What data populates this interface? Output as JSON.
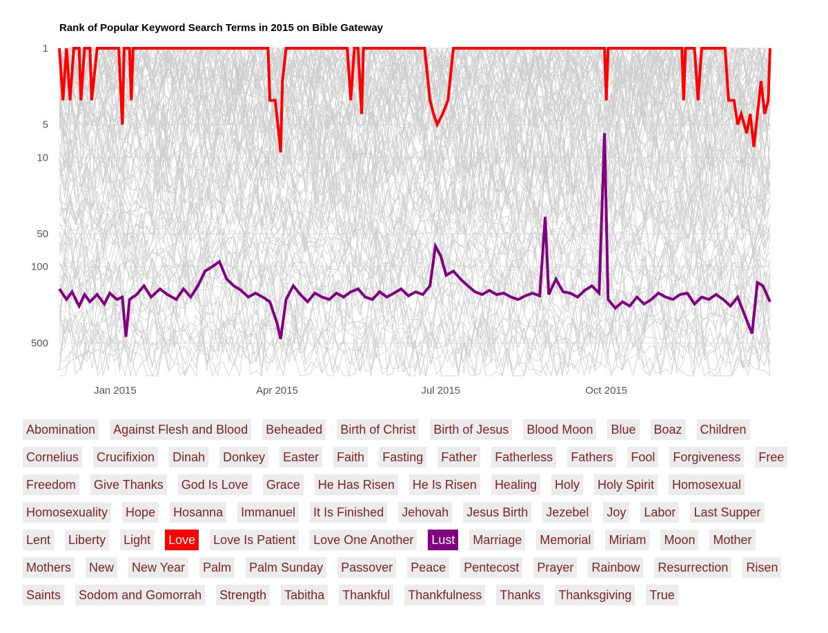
{
  "chart_data": {
    "type": "line",
    "title": "Rank of Popular Keyword Search Terms in 2015 on Bible Gateway",
    "xlabel": "",
    "ylabel": "",
    "x_range": [
      "2014-12-01",
      "2015-12-31"
    ],
    "y_scale": "log",
    "y_reversed": true,
    "ylim": [
      1,
      1000
    ],
    "y_ticks": [
      {
        "value": 1,
        "label": "1"
      },
      {
        "value": 5,
        "label": "5"
      },
      {
        "value": 10,
        "label": "10"
      },
      {
        "value": 50,
        "label": "50"
      },
      {
        "value": 100,
        "label": "100"
      },
      {
        "value": 500,
        "label": "500"
      }
    ],
    "x_ticks": [
      {
        "value": "2015-01-01",
        "label": "Jan 2015"
      },
      {
        "value": "2015-04-01",
        "label": "Apr 2015"
      },
      {
        "value": "2015-07-01",
        "label": "Jul 2015"
      },
      {
        "value": "2015-10-01",
        "label": "Oct 2015"
      }
    ],
    "grid": true,
    "legend": "none",
    "background_series_color": "#cccccc",
    "background_series_count": 100,
    "series": [
      {
        "name": "Love",
        "color": "#ff0000",
        "points": [
          [
            "2014-12-01",
            1
          ],
          [
            "2014-12-03",
            3
          ],
          [
            "2014-12-05",
            1
          ],
          [
            "2014-12-07",
            3
          ],
          [
            "2014-12-09",
            1
          ],
          [
            "2014-12-12",
            1
          ],
          [
            "2014-12-13",
            3
          ],
          [
            "2014-12-15",
            1
          ],
          [
            "2014-12-18",
            1
          ],
          [
            "2014-12-19",
            3
          ],
          [
            "2014-12-22",
            1
          ],
          [
            "2015-01-03",
            1
          ],
          [
            "2015-01-05",
            5
          ],
          [
            "2015-01-06",
            1
          ],
          [
            "2015-01-09",
            1
          ],
          [
            "2015-01-10",
            3
          ],
          [
            "2015-01-11",
            1
          ],
          [
            "2015-03-27",
            1
          ],
          [
            "2015-03-28",
            3
          ],
          [
            "2015-03-31",
            3
          ],
          [
            "2015-04-02",
            6
          ],
          [
            "2015-04-03",
            9
          ],
          [
            "2015-04-04",
            2
          ],
          [
            "2015-04-06",
            1
          ],
          [
            "2015-05-10",
            1
          ],
          [
            "2015-05-12",
            3
          ],
          [
            "2015-05-14",
            1
          ],
          [
            "2015-05-16",
            1
          ],
          [
            "2015-05-18",
            4
          ],
          [
            "2015-05-19",
            1
          ],
          [
            "2015-06-22",
            1
          ],
          [
            "2015-06-25",
            3
          ],
          [
            "2015-06-27",
            4
          ],
          [
            "2015-06-29",
            5
          ],
          [
            "2015-07-02",
            4
          ],
          [
            "2015-07-05",
            3
          ],
          [
            "2015-07-08",
            1
          ],
          [
            "2015-09-30",
            1
          ],
          [
            "2015-10-01",
            3
          ],
          [
            "2015-10-02",
            1
          ],
          [
            "2015-11-12",
            1
          ],
          [
            "2015-11-13",
            3
          ],
          [
            "2015-11-14",
            1
          ],
          [
            "2015-11-19",
            1
          ],
          [
            "2015-11-21",
            3
          ],
          [
            "2015-11-23",
            1
          ],
          [
            "2015-12-06",
            1
          ],
          [
            "2015-12-08",
            3
          ],
          [
            "2015-12-11",
            3
          ],
          [
            "2015-12-13",
            5
          ],
          [
            "2015-12-15",
            4
          ],
          [
            "2015-12-18",
            6
          ],
          [
            "2015-12-20",
            4
          ],
          [
            "2015-12-22",
            8
          ],
          [
            "2015-12-24",
            4
          ],
          [
            "2015-12-26",
            2
          ],
          [
            "2015-12-28",
            4
          ],
          [
            "2015-12-30",
            3
          ],
          [
            "2015-12-31",
            1
          ]
        ]
      },
      {
        "name": "Lust",
        "color": "#800080",
        "points": [
          [
            "2014-12-01",
            160
          ],
          [
            "2014-12-05",
            200
          ],
          [
            "2014-12-08",
            170
          ],
          [
            "2014-12-12",
            230
          ],
          [
            "2014-12-15",
            180
          ],
          [
            "2014-12-18",
            210
          ],
          [
            "2014-12-22",
            180
          ],
          [
            "2014-12-26",
            220
          ],
          [
            "2014-12-29",
            175
          ],
          [
            "2015-01-02",
            200
          ],
          [
            "2015-01-05",
            190
          ],
          [
            "2015-01-07",
            440
          ],
          [
            "2015-01-09",
            200
          ],
          [
            "2015-01-13",
            180
          ],
          [
            "2015-01-17",
            150
          ],
          [
            "2015-01-21",
            190
          ],
          [
            "2015-01-26",
            160
          ],
          [
            "2015-01-30",
            180
          ],
          [
            "2015-02-04",
            200
          ],
          [
            "2015-02-08",
            160
          ],
          [
            "2015-02-12",
            190
          ],
          [
            "2015-02-16",
            150
          ],
          [
            "2015-02-20",
            110
          ],
          [
            "2015-02-24",
            100
          ],
          [
            "2015-02-28",
            90
          ],
          [
            "2015-03-04",
            130
          ],
          [
            "2015-03-08",
            150
          ],
          [
            "2015-03-12",
            165
          ],
          [
            "2015-03-16",
            190
          ],
          [
            "2015-03-20",
            175
          ],
          [
            "2015-03-24",
            190
          ],
          [
            "2015-03-28",
            210
          ],
          [
            "2015-04-01",
            330
          ],
          [
            "2015-04-03",
            460
          ],
          [
            "2015-04-06",
            200
          ],
          [
            "2015-04-10",
            150
          ],
          [
            "2015-04-14",
            180
          ],
          [
            "2015-04-18",
            210
          ],
          [
            "2015-04-22",
            175
          ],
          [
            "2015-04-26",
            190
          ],
          [
            "2015-04-30",
            200
          ],
          [
            "2015-05-04",
            175
          ],
          [
            "2015-05-08",
            190
          ],
          [
            "2015-05-12",
            170
          ],
          [
            "2015-05-16",
            160
          ],
          [
            "2015-05-20",
            190
          ],
          [
            "2015-05-24",
            200
          ],
          [
            "2015-05-28",
            170
          ],
          [
            "2015-06-01",
            190
          ],
          [
            "2015-06-05",
            175
          ],
          [
            "2015-06-09",
            160
          ],
          [
            "2015-06-13",
            185
          ],
          [
            "2015-06-17",
            170
          ],
          [
            "2015-06-21",
            180
          ],
          [
            "2015-06-25",
            150
          ],
          [
            "2015-06-28",
            65
          ],
          [
            "2015-07-01",
            80
          ],
          [
            "2015-07-04",
            120
          ],
          [
            "2015-07-08",
            110
          ],
          [
            "2015-07-12",
            130
          ],
          [
            "2015-07-16",
            150
          ],
          [
            "2015-07-20",
            170
          ],
          [
            "2015-07-24",
            180
          ],
          [
            "2015-07-28",
            165
          ],
          [
            "2015-08-01",
            180
          ],
          [
            "2015-08-05",
            175
          ],
          [
            "2015-08-09",
            190
          ],
          [
            "2015-08-13",
            200
          ],
          [
            "2015-08-17",
            185
          ],
          [
            "2015-08-21",
            175
          ],
          [
            "2015-08-25",
            185
          ],
          [
            "2015-08-28",
            35
          ],
          [
            "2015-08-30",
            180
          ],
          [
            "2015-09-03",
            130
          ],
          [
            "2015-09-07",
            170
          ],
          [
            "2015-09-11",
            175
          ],
          [
            "2015-09-15",
            190
          ],
          [
            "2015-09-19",
            165
          ],
          [
            "2015-09-23",
            150
          ],
          [
            "2015-09-27",
            175
          ],
          [
            "2015-09-30",
            6
          ],
          [
            "2015-10-02",
            200
          ],
          [
            "2015-10-06",
            240
          ],
          [
            "2015-10-10",
            210
          ],
          [
            "2015-10-14",
            230
          ],
          [
            "2015-10-18",
            190
          ],
          [
            "2015-10-22",
            220
          ],
          [
            "2015-10-26",
            200
          ],
          [
            "2015-10-30",
            175
          ],
          [
            "2015-11-03",
            190
          ],
          [
            "2015-11-07",
            200
          ],
          [
            "2015-11-11",
            180
          ],
          [
            "2015-11-15",
            175
          ],
          [
            "2015-11-19",
            220
          ],
          [
            "2015-11-23",
            190
          ],
          [
            "2015-11-27",
            200
          ],
          [
            "2015-12-01",
            180
          ],
          [
            "2015-12-05",
            200
          ],
          [
            "2015-12-09",
            230
          ],
          [
            "2015-12-13",
            190
          ],
          [
            "2015-12-17",
            280
          ],
          [
            "2015-12-21",
            410
          ],
          [
            "2015-12-24",
            140
          ],
          [
            "2015-12-27",
            150
          ],
          [
            "2015-12-31",
            210
          ]
        ]
      }
    ]
  },
  "terms": [
    {
      "label": "Abomination"
    },
    {
      "label": "Against Flesh and Blood"
    },
    {
      "label": "Beheaded"
    },
    {
      "label": "Birth of Christ"
    },
    {
      "label": "Birth of Jesus"
    },
    {
      "label": "Blood Moon"
    },
    {
      "label": "Blue"
    },
    {
      "label": "Boaz"
    },
    {
      "label": "Children"
    },
    {
      "label": "Cornelius"
    },
    {
      "label": "Crucifixion"
    },
    {
      "label": "Dinah"
    },
    {
      "label": "Donkey"
    },
    {
      "label": "Easter"
    },
    {
      "label": "Faith"
    },
    {
      "label": "Fasting"
    },
    {
      "label": "Father"
    },
    {
      "label": "Fatherless"
    },
    {
      "label": "Fathers"
    },
    {
      "label": "Fool"
    },
    {
      "label": "Forgiveness"
    },
    {
      "label": "Free"
    },
    {
      "label": "Freedom"
    },
    {
      "label": "Give Thanks"
    },
    {
      "label": "God Is Love"
    },
    {
      "label": "Grace"
    },
    {
      "label": "He Has Risen"
    },
    {
      "label": "He Is Risen"
    },
    {
      "label": "Healing"
    },
    {
      "label": "Holy"
    },
    {
      "label": "Holy Spirit"
    },
    {
      "label": "Homosexual"
    },
    {
      "label": "Homosexuality"
    },
    {
      "label": "Hope"
    },
    {
      "label": "Hosanna"
    },
    {
      "label": "Immanuel"
    },
    {
      "label": "It Is Finished"
    },
    {
      "label": "Jehovah"
    },
    {
      "label": "Jesus Birth"
    },
    {
      "label": "Jezebel"
    },
    {
      "label": "Joy"
    },
    {
      "label": "Labor"
    },
    {
      "label": "Last Supper"
    },
    {
      "label": "Lent"
    },
    {
      "label": "Liberty"
    },
    {
      "label": "Light"
    },
    {
      "label": "Love",
      "selected": "red"
    },
    {
      "label": "Love Is Patient"
    },
    {
      "label": "Love One Another"
    },
    {
      "label": "Lust",
      "selected": "purple"
    },
    {
      "label": "Marriage"
    },
    {
      "label": "Memorial"
    },
    {
      "label": "Miriam"
    },
    {
      "label": "Moon"
    },
    {
      "label": "Mother"
    },
    {
      "label": "Mothers"
    },
    {
      "label": "New"
    },
    {
      "label": "New Year"
    },
    {
      "label": "Palm"
    },
    {
      "label": "Palm Sunday"
    },
    {
      "label": "Passover"
    },
    {
      "label": "Peace"
    },
    {
      "label": "Pentecost"
    },
    {
      "label": "Prayer"
    },
    {
      "label": "Rainbow"
    },
    {
      "label": "Resurrection"
    },
    {
      "label": "Risen"
    },
    {
      "label": "Saints"
    },
    {
      "label": "Sodom and Gomorrah"
    },
    {
      "label": "Strength"
    },
    {
      "label": "Tabitha"
    },
    {
      "label": "Thankful"
    },
    {
      "label": "Thankfulness"
    },
    {
      "label": "Thanks"
    },
    {
      "label": "Thanksgiving"
    },
    {
      "label": "True"
    }
  ]
}
